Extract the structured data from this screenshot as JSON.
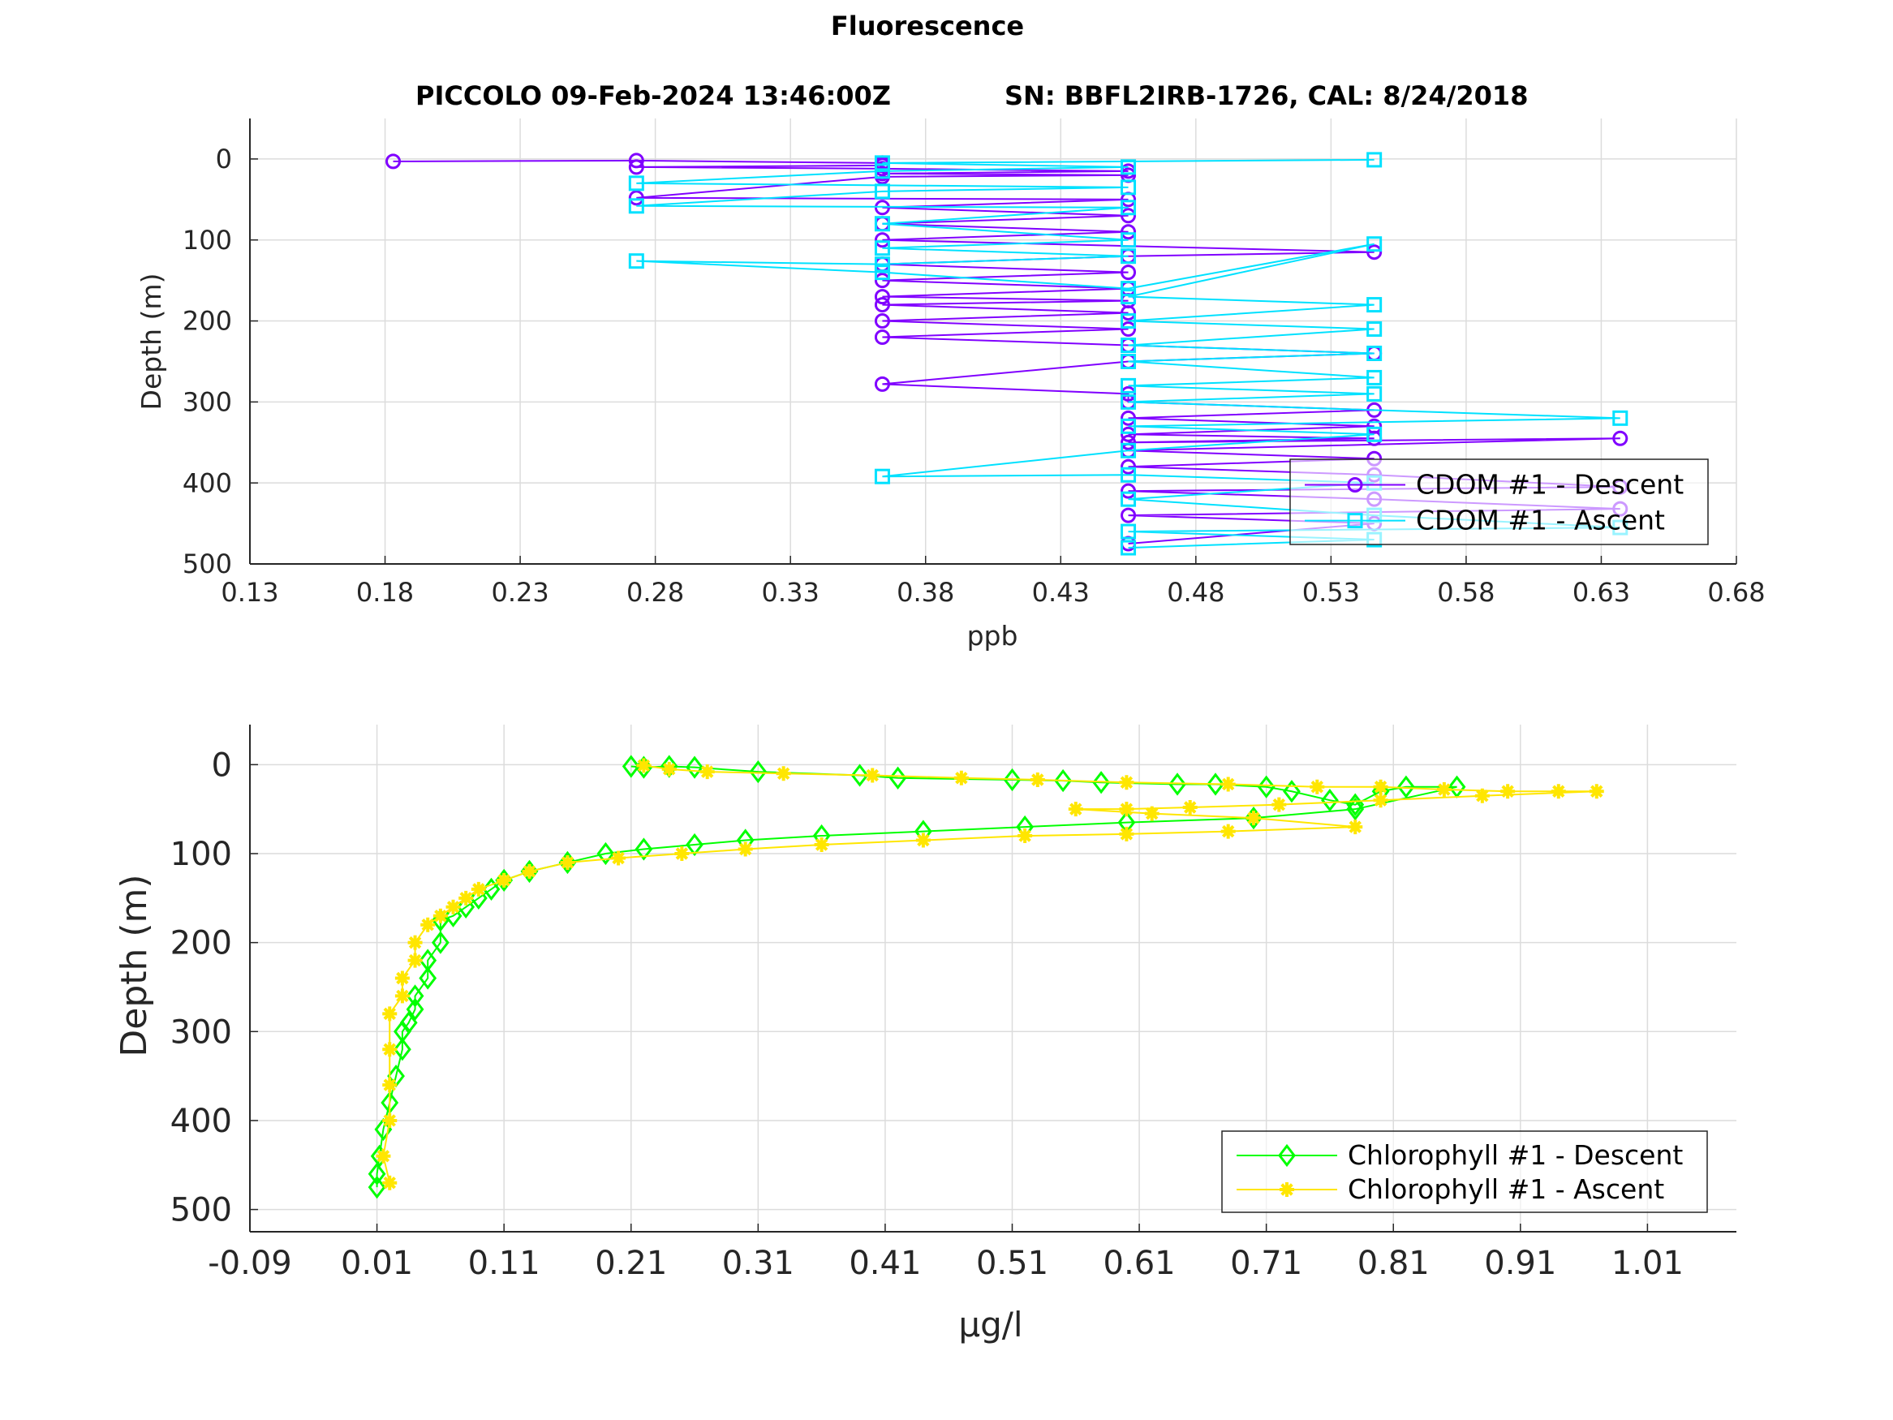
{
  "figure": {
    "title": "Fluorescence",
    "subtitle_left": "PICCOLO 09-Feb-2024 13:46:00Z",
    "subtitle_right": "SN: BBFL2IRB-1726, CAL: 8/24/2018"
  },
  "chart_data": [
    {
      "type": "line",
      "xlabel": "ppb",
      "ylabel": "Depth (m)",
      "xlim": [
        0.13,
        0.68
      ],
      "ylim": [
        500,
        -50
      ],
      "y_reversed": true,
      "xticks": [
        "0.13",
        "0.18",
        "0.23",
        "0.28",
        "0.33",
        "0.38",
        "0.43",
        "0.48",
        "0.53",
        "0.58",
        "0.63",
        "0.68"
      ],
      "yticks": [
        "0",
        "100",
        "200",
        "300",
        "400",
        "500"
      ],
      "grid": true,
      "legend_position": "bottom-right",
      "series": [
        {
          "name": "CDOM #1 - Descent",
          "color": "#8000ff",
          "marker": "circle",
          "x": [
            0.183,
            0.273,
            0.364,
            0.364,
            0.273,
            0.364,
            0.455,
            0.364,
            0.455,
            0.364,
            0.273,
            0.455,
            0.364,
            0.455,
            0.364,
            0.455,
            0.364,
            0.546,
            0.455,
            0.364,
            0.455,
            0.364,
            0.455,
            0.364,
            0.455,
            0.364,
            0.455,
            0.364,
            0.455,
            0.364,
            0.455,
            0.546,
            0.455,
            0.364,
            0.455,
            0.455,
            0.546,
            0.455,
            0.546,
            0.455,
            0.546,
            0.455,
            0.637,
            0.455,
            0.546,
            0.455,
            0.546,
            0.637,
            0.455,
            0.546,
            0.637,
            0.455,
            0.546,
            0.455
          ],
          "y": [
            3,
            2,
            5,
            8,
            10,
            12,
            15,
            18,
            20,
            22,
            48,
            50,
            60,
            70,
            80,
            90,
            100,
            115,
            120,
            130,
            140,
            150,
            160,
            170,
            175,
            180,
            190,
            200,
            210,
            220,
            230,
            240,
            250,
            278,
            290,
            300,
            310,
            320,
            330,
            340,
            345,
            350,
            345,
            360,
            370,
            380,
            390,
            405,
            410,
            420,
            432,
            440,
            450,
            475
          ]
        },
        {
          "name": "CDOM #1 - Ascent",
          "color": "#00e1ff",
          "marker": "square",
          "x": [
            0.546,
            0.364,
            0.455,
            0.364,
            0.273,
            0.455,
            0.364,
            0.273,
            0.455,
            0.364,
            0.455,
            0.364,
            0.455,
            0.364,
            0.273,
            0.364,
            0.455,
            0.546,
            0.455,
            0.546,
            0.455,
            0.546,
            0.455,
            0.546,
            0.455,
            0.546,
            0.455,
            0.546,
            0.455,
            0.637,
            0.455,
            0.546,
            0.455,
            0.364,
            0.455,
            0.546,
            0.455,
            0.546,
            0.637,
            0.455,
            0.546,
            0.455
          ],
          "y": [
            1,
            5,
            10,
            15,
            30,
            35,
            40,
            58,
            60,
            80,
            100,
            110,
            120,
            130,
            126,
            140,
            160,
            105,
            170,
            180,
            200,
            210,
            230,
            240,
            250,
            270,
            280,
            290,
            300,
            320,
            330,
            340,
            360,
            392,
            390,
            400,
            420,
            440,
            455,
            460,
            470,
            480
          ]
        }
      ]
    },
    {
      "type": "line",
      "xlabel": "μg/l",
      "ylabel": "Depth (m)",
      "xlim": [
        -0.09,
        1.08
      ],
      "ylim": [
        525,
        -45
      ],
      "y_reversed": true,
      "xticks": [
        "-0.09",
        "0.01",
        "0.11",
        "0.21",
        "0.31",
        "0.41",
        "0.51",
        "0.61",
        "0.71",
        "0.81",
        "0.91",
        "1.01"
      ],
      "yticks": [
        "0",
        "100",
        "200",
        "300",
        "400",
        "500"
      ],
      "grid": true,
      "legend_position": "bottom-right",
      "series": [
        {
          "name": "Chlorophyll #1 - Descent",
          "color": "#00ff00",
          "marker": "diamond",
          "x": [
            0.21,
            0.22,
            0.24,
            0.26,
            0.31,
            0.39,
            0.42,
            0.51,
            0.55,
            0.58,
            0.64,
            0.67,
            0.71,
            0.73,
            0.76,
            0.78,
            0.8,
            0.82,
            0.86,
            0.78,
            0.7,
            0.6,
            0.52,
            0.44,
            0.36,
            0.3,
            0.26,
            0.22,
            0.19,
            0.16,
            0.13,
            0.11,
            0.1,
            0.09,
            0.08,
            0.07,
            0.06,
            0.06,
            0.05,
            0.05,
            0.04,
            0.04,
            0.035,
            0.03,
            0.03,
            0.025,
            0.02,
            0.015,
            0.012,
            0.01,
            0.01
          ],
          "y": [
            2,
            3,
            2,
            3,
            8,
            12,
            15,
            17,
            18,
            20,
            22,
            22,
            25,
            30,
            40,
            45,
            30,
            25,
            25,
            50,
            60,
            65,
            70,
            75,
            80,
            85,
            90,
            95,
            100,
            110,
            120,
            130,
            140,
            150,
            160,
            170,
            175,
            200,
            220,
            240,
            260,
            275,
            290,
            300,
            320,
            350,
            380,
            410,
            440,
            460,
            475
          ]
        },
        {
          "name": "Chlorophyll #1 - Ascent",
          "color": "#ffe600",
          "marker": "asterisk",
          "x": [
            0.22,
            0.24,
            0.27,
            0.33,
            0.4,
            0.47,
            0.53,
            0.6,
            0.68,
            0.75,
            0.8,
            0.85,
            0.9,
            0.94,
            0.97,
            0.88,
            0.8,
            0.72,
            0.65,
            0.6,
            0.56,
            0.62,
            0.7,
            0.78,
            0.68,
            0.6,
            0.52,
            0.44,
            0.36,
            0.3,
            0.25,
            0.2,
            0.16,
            0.13,
            0.11,
            0.09,
            0.08,
            0.07,
            0.06,
            0.05,
            0.04,
            0.04,
            0.03,
            0.03,
            0.02,
            0.02,
            0.02,
            0.02,
            0.015,
            0.02
          ],
          "y": [
            1,
            5,
            8,
            10,
            12,
            15,
            17,
            20,
            22,
            25,
            25,
            28,
            30,
            30,
            30,
            35,
            40,
            45,
            48,
            50,
            50,
            55,
            60,
            70,
            75,
            78,
            80,
            85,
            90,
            95,
            100,
            105,
            110,
            120,
            130,
            140,
            150,
            160,
            170,
            180,
            200,
            220,
            240,
            260,
            280,
            320,
            360,
            400,
            440,
            470
          ]
        }
      ]
    }
  ]
}
